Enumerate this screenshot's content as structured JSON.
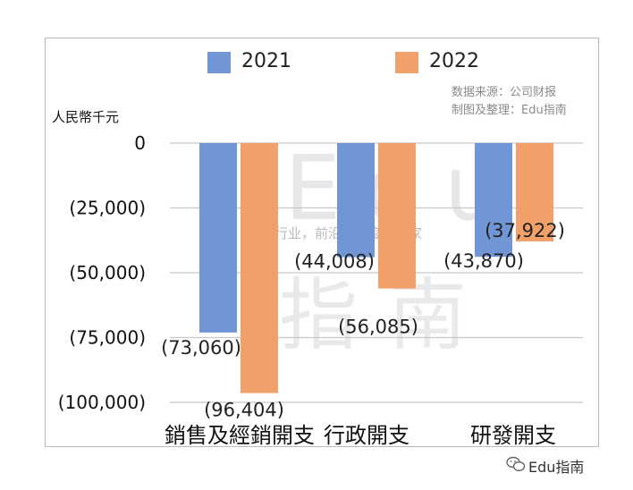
{
  "chart_data": {
    "type": "bar",
    "categories": [
      "銷售及經銷開支",
      "行政開支",
      "研發開支"
    ],
    "series": [
      {
        "name": "2021",
        "values": [
          -73060,
          -44008,
          -43870
        ],
        "labels": [
          "(73,060)",
          "(44,008)",
          "(43,870)"
        ]
      },
      {
        "name": "2022",
        "values": [
          -96404,
          -56085,
          -37922
        ],
        "labels": [
          "(96,404)",
          "(56,085)",
          "(37,922)"
        ]
      }
    ],
    "ylabel": "人民幣千元",
    "ylim": [
      -100000,
      0
    ],
    "yticks": [
      0,
      -25000,
      -50000,
      -75000,
      -100000
    ],
    "ytick_labels": [
      "0",
      "(25,000)",
      "(50,000)",
      "(75,000)",
      "(100,000)"
    ],
    "grid": true,
    "legend": "top"
  },
  "colors": {
    "series_2021": "#7096d6",
    "series_2022": "#f2a06a",
    "grid": "#c8c8c8"
  },
  "source": {
    "line1": "数据来源：公司财报",
    "line2": "制图及整理：Edu指南"
  },
  "watermark": {
    "edu": "Edu",
    "cn": "指南",
    "slogan": "教育行业，前沿、深度、独家"
  },
  "footer": {
    "account": "Edu指南",
    "icon": "wechat-icon"
  }
}
